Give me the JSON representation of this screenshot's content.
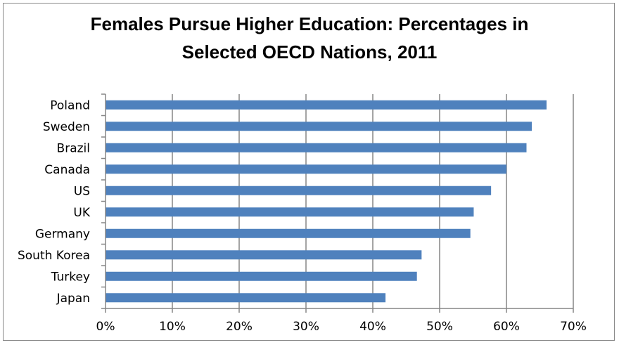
{
  "chart_data": {
    "type": "bar",
    "orientation": "horizontal",
    "title_lines": [
      "Females Pursue Higher Education: Percentages in",
      "Selected OECD Nations, 2011"
    ],
    "categories": [
      "Poland",
      "Sweden",
      "Brazil",
      "Canada",
      "US",
      "UK",
      "Germany",
      "South Korea",
      "Turkey",
      "Japan"
    ],
    "values": [
      0.66,
      0.638,
      0.63,
      0.6,
      0.577,
      0.551,
      0.546,
      0.473,
      0.466,
      0.419
    ],
    "xlim": [
      0,
      0.7
    ],
    "x_ticks": [
      0,
      0.1,
      0.2,
      0.3,
      0.4,
      0.5,
      0.6,
      0.7
    ],
    "x_tick_labels": [
      "0%",
      "10%",
      "20%",
      "30%",
      "40%",
      "50%",
      "60%",
      "70%"
    ],
    "xlabel": "",
    "ylabel": "",
    "grid": "vertical major gridlines",
    "legend": "none",
    "bar_color": "#4f81bd",
    "grid_color": "#868686"
  }
}
